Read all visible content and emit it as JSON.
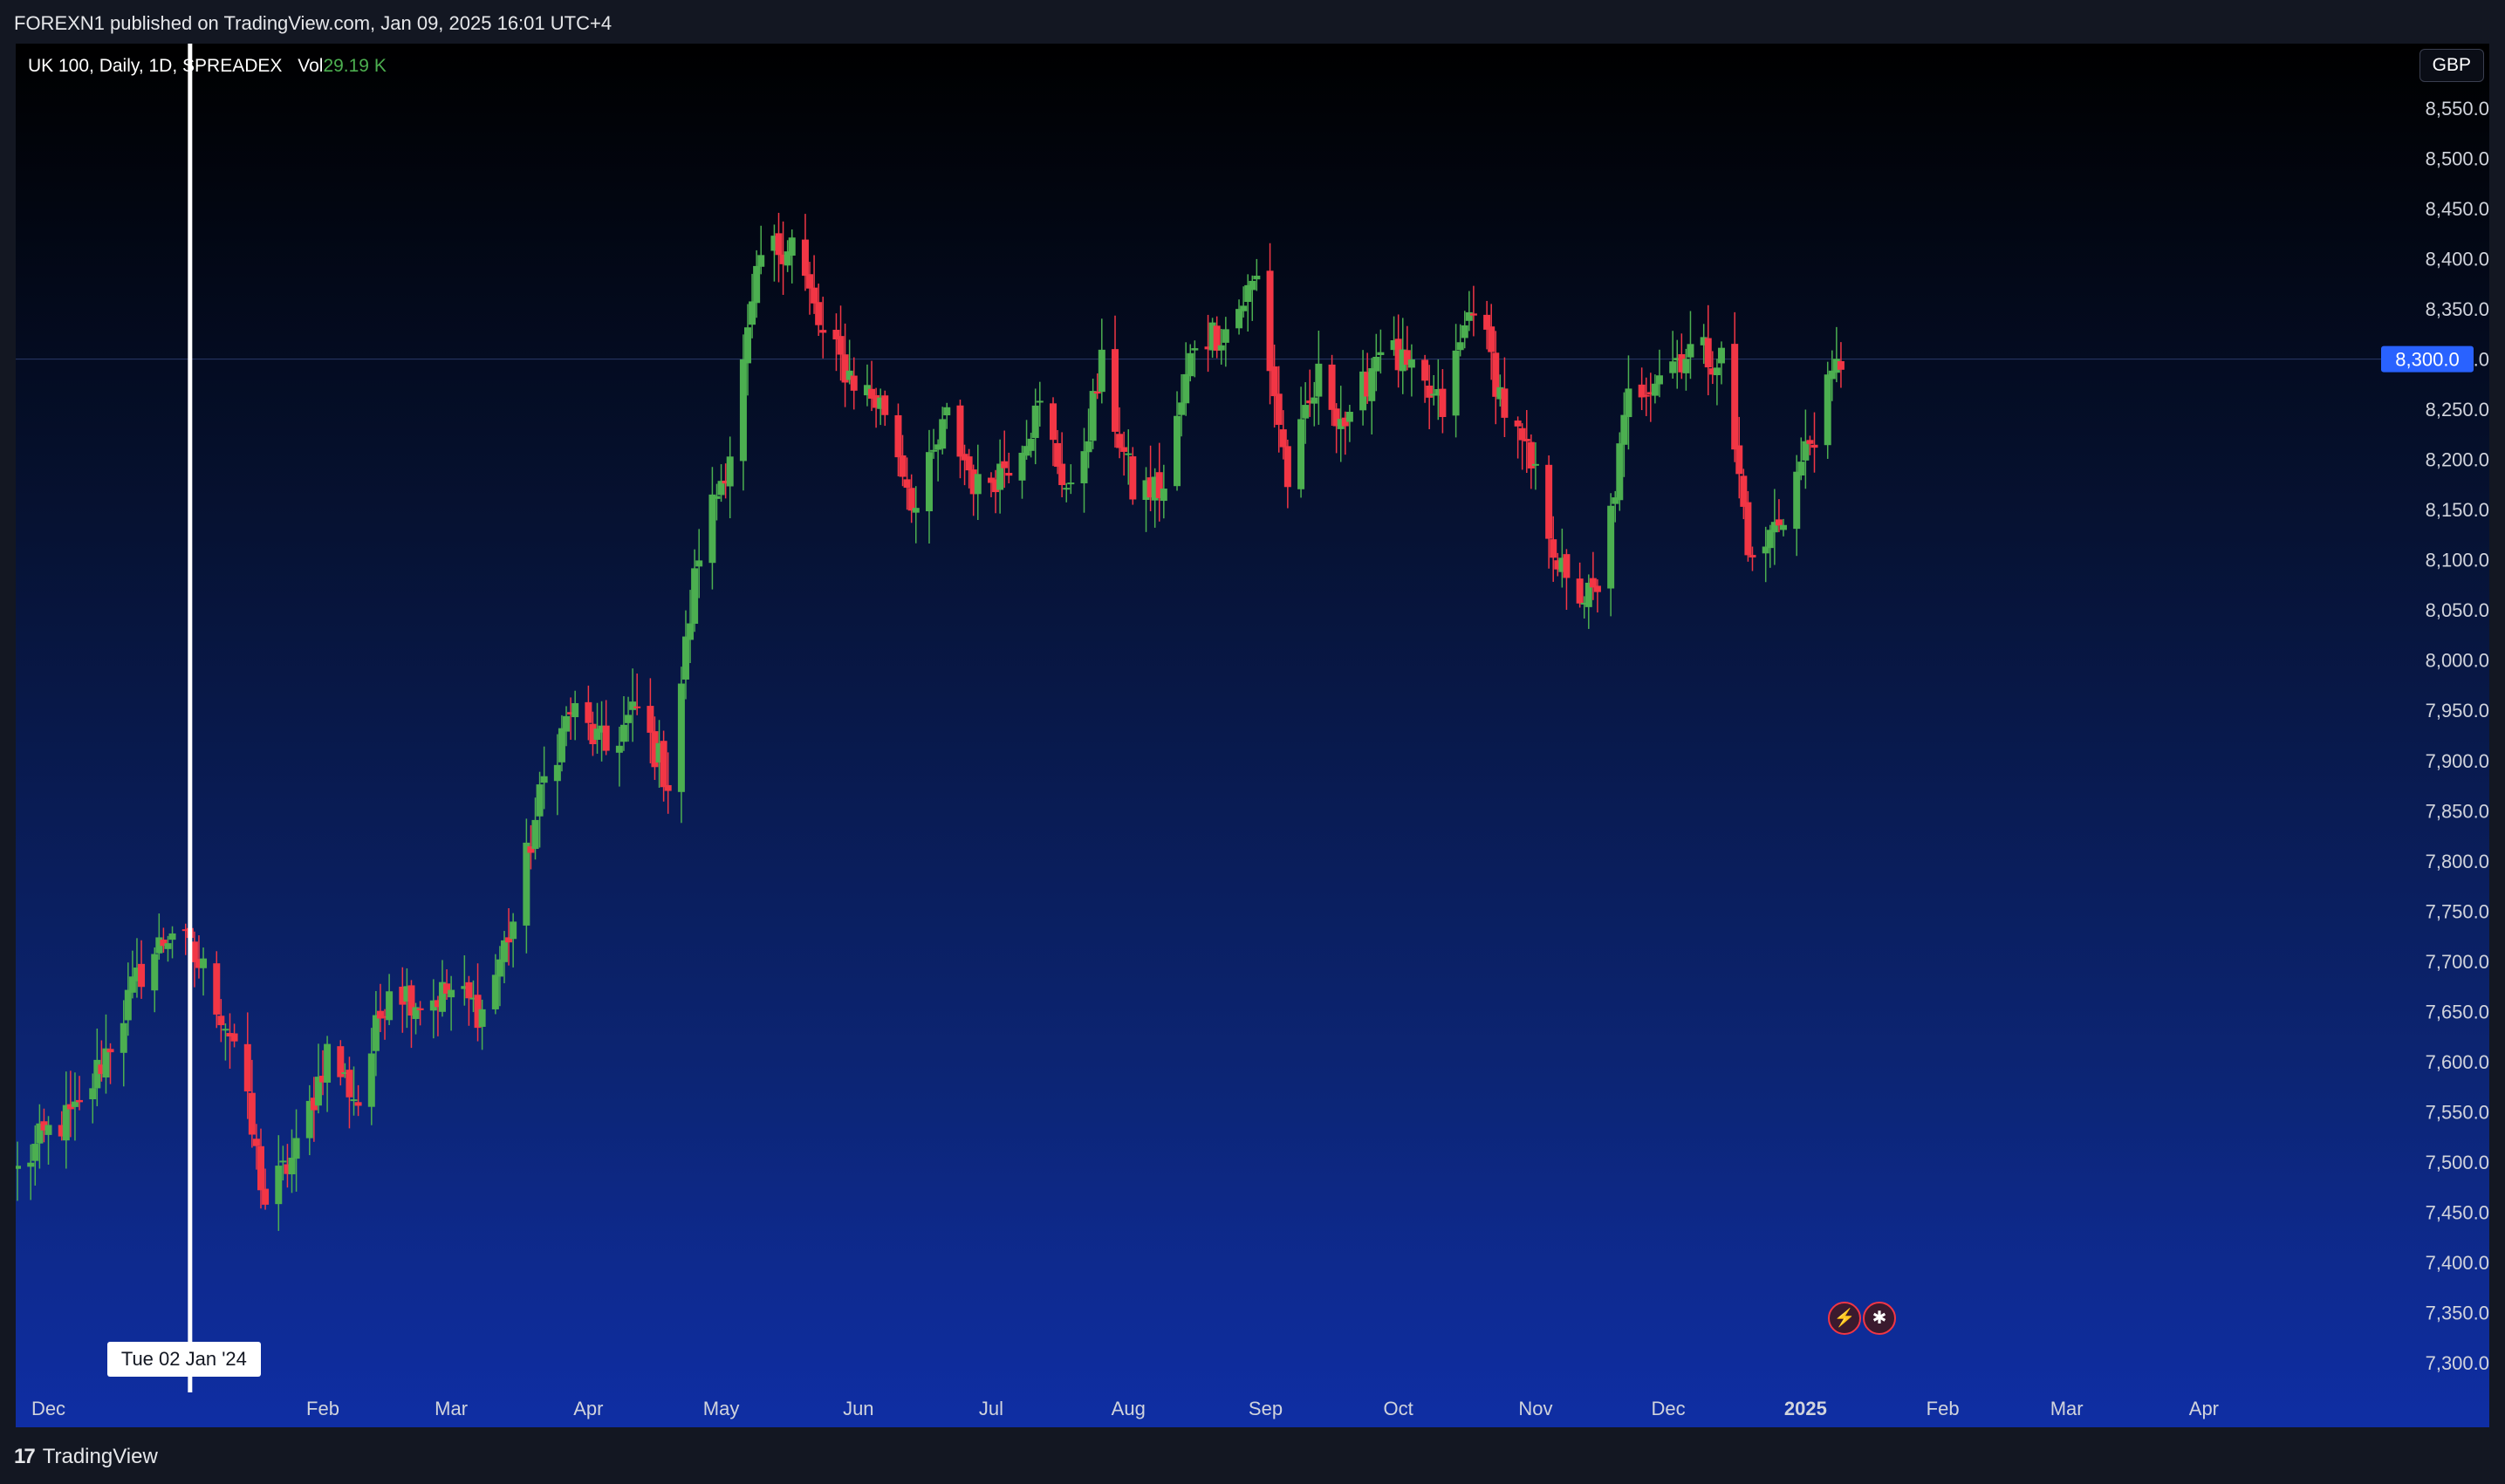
{
  "header": {
    "published_text": "FOREXN1 published on TradingView.com, Jan 09, 2025 16:01 UTC+4"
  },
  "legend": {
    "symbol": "UK 100, Daily, 1D, SPREADEX",
    "vol_label": "Vol",
    "vol_value": "29.19 K"
  },
  "currency_button": "GBP",
  "crosshair": {
    "date_label": "Tue 02 Jan '24"
  },
  "footer": {
    "brand_logo": "17",
    "brand": "TradingView"
  },
  "events": [
    {
      "icon": "lightning-icon"
    },
    {
      "icon": "uk-flag-icon"
    }
  ],
  "colors": {
    "up": "#4caf50",
    "down": "#f23645",
    "price_tag": "#2962ff",
    "crosshair": "#ffffff"
  },
  "chart_data": {
    "type": "candlestick",
    "title": "UK 100, Daily, 1D, SPREADEX",
    "price_axis_labels": [
      "8,550.0",
      "8,500.0",
      "8,450.0",
      "8,400.0",
      "8,350.0",
      "8,300.0",
      "8,250.0",
      "8,200.0",
      "8,150.0",
      "8,100.0",
      "8,050.0",
      "8,000.0",
      "7,950.0",
      "7,900.0",
      "7,850.0",
      "7,800.0",
      "7,750.0",
      "7,700.0",
      "7,650.0",
      "7,600.0",
      "7,550.0",
      "7,500.0",
      "7,450.0",
      "7,400.0",
      "7,350.0",
      "7,300.0"
    ],
    "current_price_label": "8,300.0",
    "ylim": [
      7300,
      8550
    ],
    "time_axis_labels": [
      "Dec",
      "Jan",
      "Feb",
      "Mar",
      "Apr",
      "May",
      "Jun",
      "Jul",
      "Aug",
      "Sep",
      "Oct",
      "Nov",
      "Dec",
      "2025",
      "Feb",
      "Mar",
      "Apr"
    ],
    "x_range": [
      "2023-11-24",
      "2025-04-30"
    ],
    "crosshair_date": "2024-01-02",
    "approx_closes": [
      [
        "2023-11-24",
        7490
      ],
      [
        "2023-12-01",
        7530
      ],
      [
        "2023-12-08",
        7550
      ],
      [
        "2023-12-15",
        7620
      ],
      [
        "2023-12-22",
        7690
      ],
      [
        "2023-12-29",
        7733
      ],
      [
        "2024-01-05",
        7690
      ],
      [
        "2024-01-12",
        7620
      ],
      [
        "2024-01-19",
        7460
      ],
      [
        "2024-01-26",
        7510
      ],
      [
        "2024-02-02",
        7610
      ],
      [
        "2024-02-09",
        7560
      ],
      [
        "2024-02-16",
        7680
      ],
      [
        "2024-02-23",
        7660
      ],
      [
        "2024-03-01",
        7670
      ],
      [
        "2024-03-08",
        7650
      ],
      [
        "2024-03-15",
        7740
      ],
      [
        "2024-03-22",
        7880
      ],
      [
        "2024-03-28",
        7950
      ],
      [
        "2024-04-05",
        7910
      ],
      [
        "2024-04-12",
        7950
      ],
      [
        "2024-04-19",
        7880
      ],
      [
        "2024-04-26",
        8110
      ],
      [
        "2024-05-03",
        8210
      ],
      [
        "2024-05-10",
        8400
      ],
      [
        "2024-05-17",
        8420
      ],
      [
        "2024-05-24",
        8320
      ],
      [
        "2024-05-31",
        8280
      ],
      [
        "2024-06-07",
        8250
      ],
      [
        "2024-06-14",
        8150
      ],
      [
        "2024-06-21",
        8240
      ],
      [
        "2024-06-28",
        8170
      ],
      [
        "2024-07-05",
        8200
      ],
      [
        "2024-07-12",
        8250
      ],
      [
        "2024-07-19",
        8160
      ],
      [
        "2024-07-26",
        8290
      ],
      [
        "2024-08-02",
        8170
      ],
      [
        "2024-08-09",
        8170
      ],
      [
        "2024-08-16",
        8320
      ],
      [
        "2024-08-23",
        8330
      ],
      [
        "2024-08-30",
        8380
      ],
      [
        "2024-09-06",
        8180
      ],
      [
        "2024-09-13",
        8280
      ],
      [
        "2024-09-20",
        8230
      ],
      [
        "2024-09-27",
        8320
      ],
      [
        "2024-10-04",
        8280
      ],
      [
        "2024-10-11",
        8250
      ],
      [
        "2024-10-18",
        8360
      ],
      [
        "2024-10-25",
        8250
      ],
      [
        "2024-11-01",
        8180
      ],
      [
        "2024-11-08",
        8070
      ],
      [
        "2024-11-15",
        8060
      ],
      [
        "2024-11-22",
        8260
      ],
      [
        "2024-11-29",
        8290
      ],
      [
        "2024-12-06",
        8310
      ],
      [
        "2024-12-13",
        8300
      ],
      [
        "2024-12-20",
        8090
      ],
      [
        "2024-12-27",
        8150
      ],
      [
        "2025-01-03",
        8230
      ],
      [
        "2025-01-09",
        8300
      ]
    ]
  }
}
